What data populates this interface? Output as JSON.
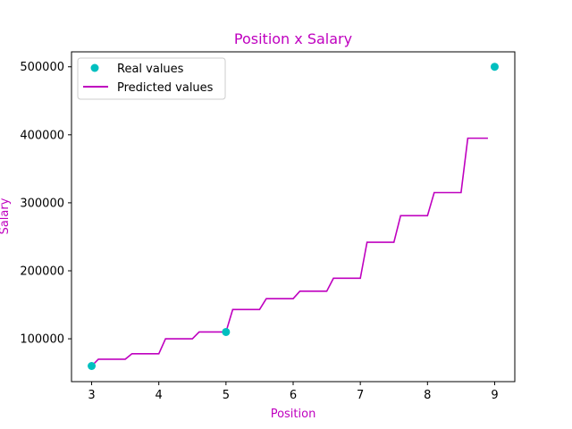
{
  "chart_data": {
    "type": "line",
    "title": "Position x Salary",
    "xlabel": "Position",
    "ylabel": "Salary",
    "xlim": [
      2.7,
      9.3
    ],
    "ylim": [
      37000,
      522000
    ],
    "xticks": [
      3,
      4,
      5,
      6,
      7,
      8,
      9
    ],
    "yticks": [
      100000,
      200000,
      300000,
      400000,
      500000
    ],
    "xtick_labels": [
      "3",
      "4",
      "5",
      "6",
      "7",
      "8",
      "9"
    ],
    "ytick_labels": [
      "100000",
      "200000",
      "300000",
      "400000",
      "500000"
    ],
    "text_color": "#bf00bf",
    "legend_location": "upper left",
    "series": [
      {
        "name": "Real values",
        "type": "scatter",
        "color": "#00bfbf",
        "x": [
          3,
          5,
          9
        ],
        "y": [
          60000,
          110000,
          500000
        ]
      },
      {
        "name": "Predicted values",
        "type": "line",
        "color": "#bf00bf",
        "x": [
          3.0,
          3.1,
          3.5,
          3.6,
          4.0,
          4.1,
          4.5,
          4.6,
          5.0,
          5.1,
          5.5,
          5.6,
          6.0,
          6.1,
          6.5,
          6.6,
          7.0,
          7.1,
          7.5,
          7.6,
          8.0,
          8.1,
          8.5,
          8.6,
          8.9
        ],
        "y": [
          60000,
          70000,
          70000,
          78000,
          78000,
          100000,
          100000,
          110000,
          110000,
          143000,
          143000,
          159000,
          159000,
          170000,
          170000,
          189000,
          189000,
          242000,
          242000,
          281000,
          281000,
          315000,
          315000,
          395000,
          395000
        ]
      }
    ]
  }
}
